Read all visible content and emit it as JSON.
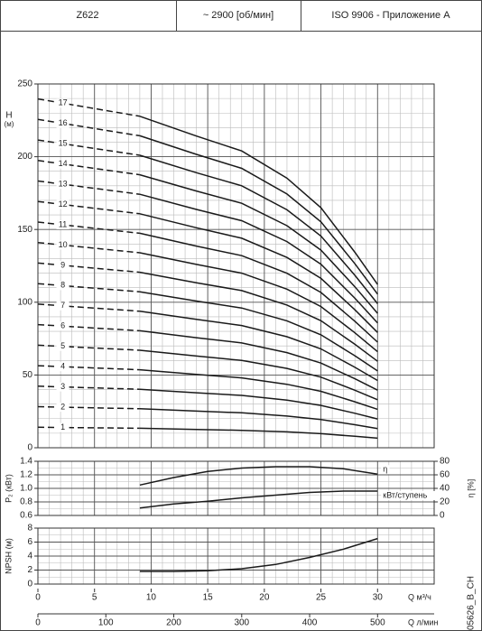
{
  "header": {
    "cells": [
      "Z622",
      "~ 2900 [об/мин]",
      "ISO 9906 - Приложение А"
    ]
  },
  "code": "05626_B_CH",
  "chart_data": [
    {
      "type": "line",
      "ylabel": "H",
      "ylabel_unit": "(м)",
      "x": [
        0,
        9,
        14,
        18,
        22,
        25,
        28,
        30
      ],
      "xlim": [
        0,
        35
      ],
      "xticks": [
        0,
        5,
        10,
        15,
        20,
        25,
        30
      ],
      "xminor": 1,
      "ylim": [
        0,
        250
      ],
      "yticks": [
        0,
        50,
        100,
        150,
        200,
        250
      ],
      "yminor": 10,
      "grid": true,
      "dashed_below": 9,
      "color": "#1a1a1a",
      "series": [
        {
          "name": "1",
          "values": [
            14.1,
            13.4,
            12.6,
            12.0,
            10.9,
            9.7,
            7.9,
            6.6
          ]
        },
        {
          "name": "2",
          "values": [
            28.2,
            26.8,
            25.2,
            24.0,
            21.8,
            19.4,
            15.8,
            13.2
          ]
        },
        {
          "name": "3",
          "values": [
            42.3,
            40.2,
            37.8,
            36.0,
            32.7,
            29.1,
            23.7,
            19.8
          ]
        },
        {
          "name": "4",
          "values": [
            56.4,
            53.6,
            50.4,
            48.0,
            43.6,
            38.8,
            31.6,
            26.4
          ]
        },
        {
          "name": "5",
          "values": [
            70.5,
            67.0,
            63.0,
            60.0,
            54.5,
            48.5,
            39.5,
            33.0
          ]
        },
        {
          "name": "6",
          "values": [
            84.6,
            80.4,
            75.6,
            72.0,
            65.4,
            58.2,
            47.4,
            39.6
          ]
        },
        {
          "name": "7",
          "values": [
            98.7,
            93.8,
            88.2,
            84.0,
            76.3,
            67.9,
            55.3,
            46.2
          ]
        },
        {
          "name": "8",
          "values": [
            112.8,
            107.2,
            100.8,
            96.0,
            87.2,
            77.6,
            63.2,
            52.8
          ]
        },
        {
          "name": "9",
          "values": [
            126.9,
            120.6,
            113.4,
            108.0,
            98.1,
            87.3,
            71.1,
            59.4
          ]
        },
        {
          "name": "10",
          "values": [
            141,
            134,
            126,
            120,
            109,
            97,
            79,
            66
          ]
        },
        {
          "name": "11",
          "values": [
            155.1,
            147.4,
            138.6,
            132.0,
            119.9,
            106.7,
            86.9,
            72.6
          ]
        },
        {
          "name": "12",
          "values": [
            169.2,
            160.8,
            151.2,
            144.0,
            130.8,
            116.4,
            94.8,
            79.2
          ]
        },
        {
          "name": "13",
          "values": [
            183.3,
            174.2,
            163.8,
            156.0,
            141.7,
            126.1,
            102.7,
            85.8
          ]
        },
        {
          "name": "14",
          "values": [
            197.4,
            187.6,
            176.4,
            168.0,
            152.6,
            135.8,
            110.6,
            92.4
          ]
        },
        {
          "name": "15",
          "values": [
            211.5,
            201.0,
            189.0,
            180.0,
            163.5,
            145.5,
            118.5,
            99.0
          ]
        },
        {
          "name": "16",
          "values": [
            225.6,
            214.4,
            201.6,
            192.0,
            174.4,
            155.2,
            126.4,
            105.6
          ]
        },
        {
          "name": "17",
          "values": [
            239.7,
            227.8,
            214.2,
            204.0,
            185.3,
            164.9,
            134.3,
            112.2
          ]
        }
      ]
    },
    {
      "type": "line",
      "ylabel": "P₂ (кВт)",
      "y2label": "η [%]",
      "x": [
        9,
        12,
        15,
        18,
        21,
        24,
        27,
        30
      ],
      "xlim": [
        0,
        35
      ],
      "xticks": [
        0,
        5,
        10,
        15,
        20,
        25,
        30
      ],
      "xminor": 1,
      "ylim": [
        0.6,
        1.4
      ],
      "yticks": [
        0.6,
        0.8,
        {
          "value": 1,
          "label": "1.0"
        },
        1.2,
        1.4
      ],
      "yminor": 0.1,
      "y2lim": [
        0,
        80
      ],
      "y2ticks": [
        0,
        20,
        40,
        60,
        80
      ],
      "grid": true,
      "color": "#1a1a1a",
      "series": [
        {
          "name": "η",
          "axis": "y2",
          "values": [
            45,
            56,
            65,
            70,
            72,
            72,
            69,
            61
          ]
        },
        {
          "name": "кВт/ступень",
          "values": [
            0.71,
            0.77,
            0.81,
            0.86,
            0.9,
            0.94,
            0.96,
            0.96
          ]
        }
      ]
    },
    {
      "type": "line",
      "ylabel": "NPSH (м)",
      "x": [
        9,
        12,
        15,
        18,
        21,
        24,
        27,
        30
      ],
      "xlim": [
        0,
        35
      ],
      "xticks": [
        0,
        5,
        10,
        15,
        20,
        25,
        30
      ],
      "xminor": 1,
      "ylim": [
        0,
        8
      ],
      "yticks": [
        0,
        2,
        4,
        6,
        8
      ],
      "yminor": 1,
      "grid": true,
      "color": "#1a1a1a",
      "show_xtick_labels": true,
      "xlabel": "Q м³/ч",
      "x2lim": [
        0,
        583.3
      ],
      "x2ticks": [
        0,
        100,
        200,
        300,
        400,
        500
      ],
      "x2label": "Q л/мин",
      "series": [
        {
          "values": [
            1.8,
            1.8,
            1.9,
            2.2,
            2.8,
            3.8,
            5.0,
            6.5
          ]
        }
      ]
    }
  ]
}
